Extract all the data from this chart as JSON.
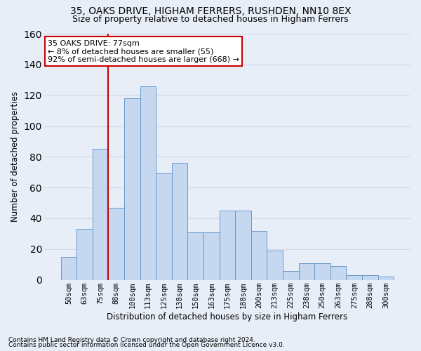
{
  "title": "35, OAKS DRIVE, HIGHAM FERRERS, RUSHDEN, NN10 8EX",
  "subtitle": "Size of property relative to detached houses in Higham Ferrers",
  "xlabel": "Distribution of detached houses by size in Higham Ferrers",
  "ylabel": "Number of detached properties",
  "footnote1": "Contains HM Land Registry data © Crown copyright and database right 2024.",
  "footnote2": "Contains public sector information licensed under the Open Government Licence v3.0.",
  "bar_labels": [
    "50sqm",
    "63sqm",
    "75sqm",
    "88sqm",
    "100sqm",
    "113sqm",
    "125sqm",
    "138sqm",
    "150sqm",
    "163sqm",
    "175sqm",
    "188sqm",
    "200sqm",
    "213sqm",
    "225sqm",
    "238sqm",
    "250sqm",
    "263sqm",
    "275sqm",
    "288sqm",
    "300sqm"
  ],
  "bar_values": [
    15,
    33,
    85,
    47,
    118,
    126,
    69,
    76,
    31,
    31,
    45,
    45,
    32,
    19,
    6,
    11,
    11,
    9,
    3,
    3,
    2
  ],
  "bar_color": "#c5d8f0",
  "bar_edge_color": "#6699cc",
  "highlight_label": "35 OAKS DRIVE: 77sqm",
  "annotation_line1": "← 8% of detached houses are smaller (55)",
  "annotation_line2": "92% of semi-detached houses are larger (668) →",
  "vline_color": "#cc0000",
  "annotation_box_bg": "#ffffff",
  "annotation_box_edge": "#cc0000",
  "ylim_max": 160,
  "yticks": [
    0,
    20,
    40,
    60,
    80,
    100,
    120,
    140,
    160
  ],
  "bg_color": "#e8eef8",
  "grid_color": "#d0d8e8",
  "title_fontsize": 10,
  "subtitle_fontsize": 9,
  "axis_label_fontsize": 8.5,
  "tick_fontsize": 7.5,
  "annotation_fontsize": 8,
  "footnote_fontsize": 6.5
}
